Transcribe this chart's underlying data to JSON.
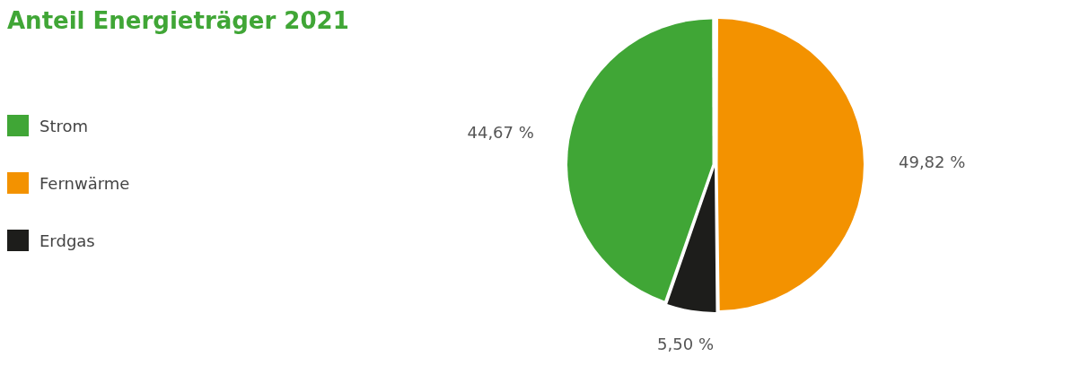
{
  "chart_data": {
    "type": "pie",
    "title": "Anteil Energieträger 2021",
    "categories": [
      "Strom",
      "Fernwärme",
      "Erdgas"
    ],
    "values": [
      44.67,
      49.82,
      5.5
    ],
    "colors": [
      "#40a636",
      "#f39200",
      "#1d1d1b"
    ],
    "value_labels": [
      "44,67 %",
      "49,82 %",
      "5,50 %"
    ],
    "legend": "left"
  }
}
